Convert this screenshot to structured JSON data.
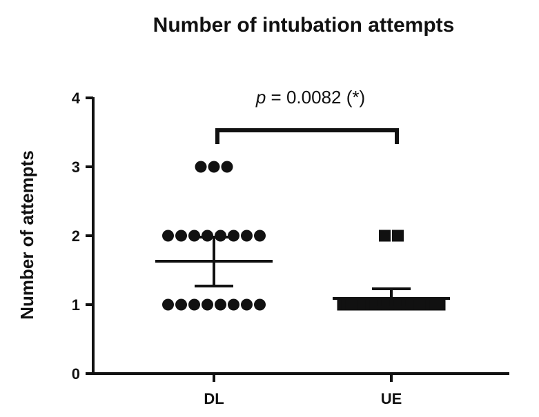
{
  "chart_data": {
    "type": "scatter",
    "title": "Number of intubation attempts",
    "xlabel": "",
    "ylabel": "Number of attempts",
    "ylim": [
      0,
      4
    ],
    "yticks": [
      "0",
      "1",
      "2",
      "3",
      "4"
    ],
    "categories": [
      "DL",
      "UE"
    ],
    "series": [
      {
        "category": "DL",
        "marker": "circle",
        "points": [
          {
            "y": 1,
            "count": 8
          },
          {
            "y": 2,
            "count": 8
          },
          {
            "y": 3,
            "count": 3
          }
        ],
        "mean": 1.63,
        "sem_low": 1.27,
        "sem_high": 1.98
      },
      {
        "category": "UE",
        "marker": "square",
        "points": [
          {
            "y": 1,
            "count": 25
          },
          {
            "y": 2,
            "count": 2
          }
        ],
        "mean": 1.09,
        "sem_low": 0.96,
        "sem_high": 1.23
      }
    ],
    "annotation": {
      "p_label": "p",
      "p_text": " = 0.0082 (*)"
    }
  }
}
